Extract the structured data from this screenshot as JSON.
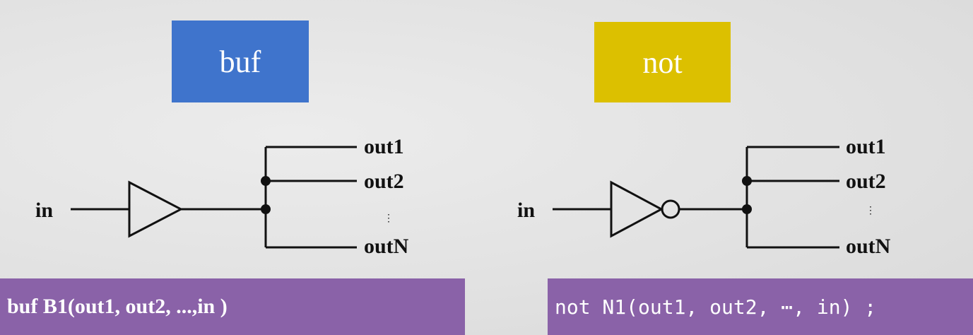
{
  "buf": {
    "title": "buf",
    "color": "#3f74cc",
    "input_label": "in",
    "outputs": [
      "out1",
      "out2",
      "outN"
    ],
    "ellipsis": "⋮",
    "code": "buf B1(out1, out2, ...,in )"
  },
  "not": {
    "title": "not",
    "color": "#dcc000",
    "input_label": "in",
    "outputs": [
      "out1",
      "out2",
      "outN"
    ],
    "ellipsis": "⋮",
    "code": "not N1(out1, out2, ⋯, in) ;"
  },
  "code_box_color": "#8a62a8"
}
